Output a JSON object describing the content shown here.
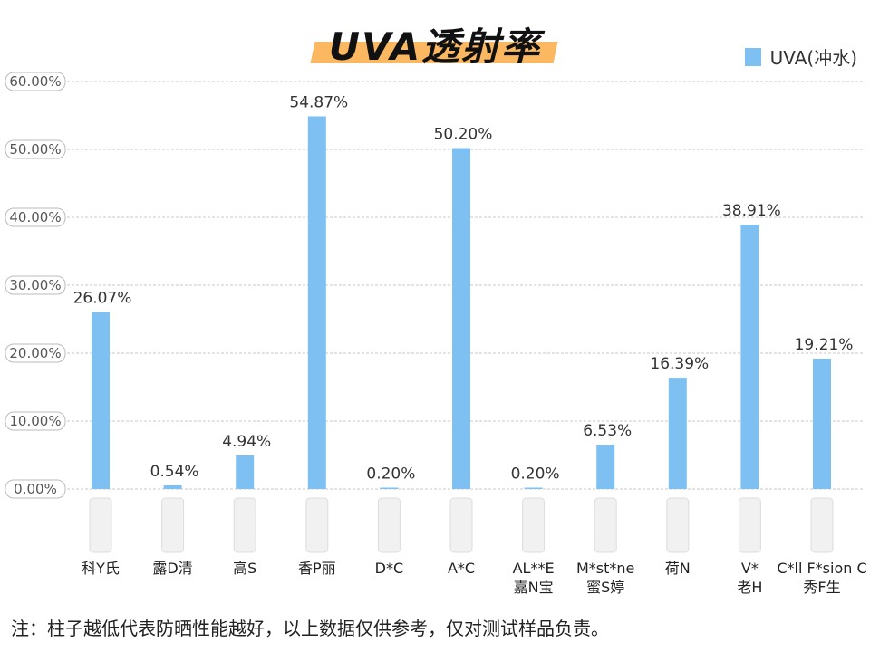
{
  "chart_data": {
    "type": "bar",
    "title": "UVA透射率",
    "legend": [
      "UVA(冲水)"
    ],
    "legend_position": "top-right",
    "categories": [
      [
        "科Y氏"
      ],
      [
        "露D清"
      ],
      [
        "高S"
      ],
      [
        "香P丽"
      ],
      [
        "D*C"
      ],
      [
        "A*C"
      ],
      [
        "AL**E",
        "嘉N宝"
      ],
      [
        "M*st*ne",
        "蜜S婷"
      ],
      [
        "荷N"
      ],
      [
        "V*",
        "老H"
      ],
      [
        "C*ll F*sion C",
        "秀F生"
      ]
    ],
    "series": [
      {
        "name": "UVA(冲水)",
        "values": [
          26.07,
          0.54,
          4.94,
          54.87,
          0.2,
          50.2,
          0.2,
          6.53,
          16.39,
          38.91,
          19.21
        ]
      }
    ],
    "value_labels": [
      "26.07%",
      "0.54%",
      "4.94%",
      "54.87%",
      "0.20%",
      "50.20%",
      "0.20%",
      "6.53%",
      "16.39%",
      "38.91%",
      "19.21%"
    ],
    "yticks": [
      "0.00%",
      "10.00%",
      "20.00%",
      "30.00%",
      "40.00%",
      "50.00%",
      "60.00%"
    ],
    "ylim": [
      0,
      60
    ],
    "grid": true,
    "colors": {
      "bar": "#7fc0f3",
      "title_bg": "#fbb860"
    }
  },
  "note": "注：柱子越低代表防晒性能越好，以上数据仅供参考，仅对测试样品负责。"
}
